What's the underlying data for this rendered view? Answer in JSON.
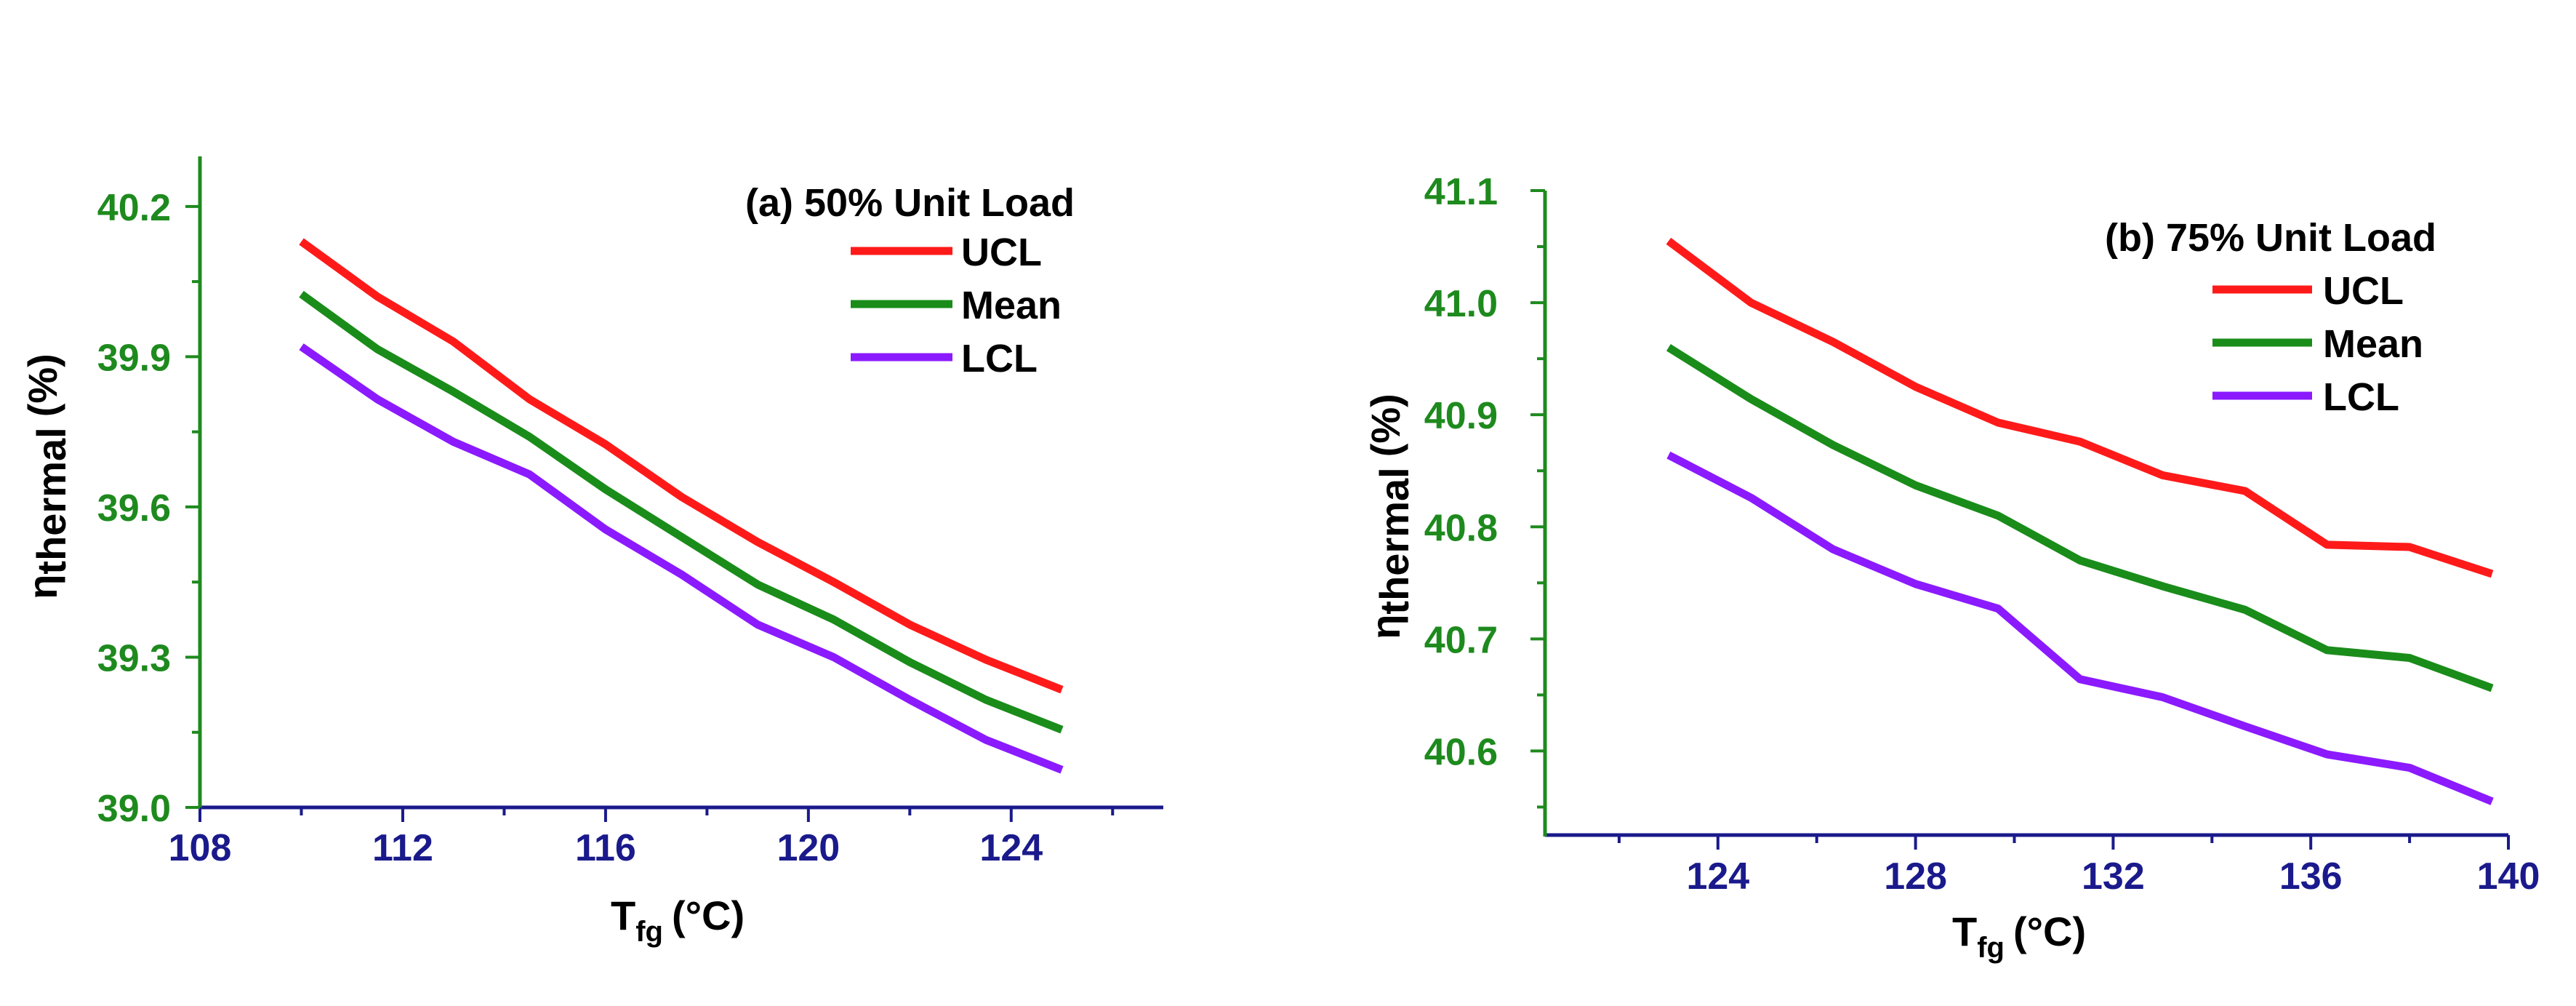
{
  "colors": {
    "axis_x": "#1a1a8c",
    "axis_y": "#1e8a1e",
    "tick_label_x": "#1a1a8c",
    "tick_label_y": "#1e8a1e",
    "text": "#000000"
  },
  "chart_data": [
    {
      "type": "line",
      "title": "(a) 50% Unit Load",
      "xlabel": "T",
      "xlabel_sub": "fg",
      "xlabel_unit": "(°C)",
      "ylabel": "η",
      "ylabel_sub": "thermal",
      "ylabel_unit": "(%)",
      "xlim": [
        108,
        127
      ],
      "ylim": [
        39.0,
        40.3
      ],
      "x_ticks": [
        108,
        112,
        116,
        120,
        124
      ],
      "y_ticks": [
        39.0,
        39.3,
        39.6,
        39.9,
        40.2
      ],
      "x_tick_labels": [
        "108",
        "112",
        "116",
        "120",
        "124"
      ],
      "y_tick_labels": [
        "39.0",
        "39.3",
        "39.6",
        "39.9",
        "40.2"
      ],
      "legend_position": "top-right",
      "series": [
        {
          "name": "UCL",
          "color": "#ff1a1a",
          "x": [
            110,
            111.5,
            113,
            114.5,
            116,
            117.5,
            119,
            120.5,
            122,
            123.5,
            125
          ],
          "y": [
            40.13,
            40.02,
            39.93,
            39.815,
            39.725,
            39.62,
            39.53,
            39.45,
            39.365,
            39.295,
            39.235
          ]
        },
        {
          "name": "Mean",
          "color": "#1a8c1a",
          "x": [
            110,
            111.5,
            113,
            114.5,
            116,
            117.5,
            119,
            120.5,
            122,
            123.5,
            125
          ],
          "y": [
            40.025,
            39.915,
            39.83,
            39.74,
            39.635,
            39.54,
            39.445,
            39.375,
            39.29,
            39.215,
            39.155
          ]
        },
        {
          "name": "LCL",
          "color": "#8b1aff",
          "x": [
            110,
            111.5,
            113,
            114.5,
            116,
            117.5,
            119,
            120.5,
            122,
            123.5,
            125
          ],
          "y": [
            39.92,
            39.815,
            39.73,
            39.665,
            39.555,
            39.465,
            39.365,
            39.3,
            39.215,
            39.135,
            39.075
          ]
        }
      ]
    },
    {
      "type": "line",
      "title": "(b) 75% Unit Load",
      "xlabel": "T",
      "xlabel_sub": "fg",
      "xlabel_unit": "(°C)",
      "ylabel": "η",
      "ylabel_sub": "thermal",
      "ylabel_unit": "(%)",
      "xlim": [
        120.5,
        140
      ],
      "ylim": [
        40.525,
        41.1
      ],
      "x_ticks": [
        124,
        128,
        132,
        136,
        140
      ],
      "y_ticks": [
        40.6,
        40.7,
        40.8,
        40.9,
        41.0,
        41.1
      ],
      "x_tick_labels": [
        "124",
        "128",
        "132",
        "136",
        "140"
      ],
      "y_tick_labels": [
        "40.6",
        "40.7",
        "40.8",
        "40.9",
        "41.0",
        "41.1"
      ],
      "legend_position": "top-right",
      "series": [
        {
          "name": "UCL",
          "color": "#ff1a1a",
          "x": [
            123,
            124.67,
            126.33,
            128,
            129.67,
            131.33,
            133,
            134.67,
            136.33,
            138,
            139.67
          ],
          "y": [
            41.055,
            41.0,
            40.965,
            40.925,
            40.893,
            40.876,
            40.846,
            40.832,
            40.784,
            40.782,
            40.758
          ]
        },
        {
          "name": "Mean",
          "color": "#1a8c1a",
          "x": [
            123,
            124.67,
            126.33,
            128,
            129.67,
            131.33,
            133,
            134.67,
            136.33,
            138,
            139.67
          ],
          "y": [
            40.96,
            40.914,
            40.873,
            40.837,
            40.81,
            40.77,
            40.747,
            40.726,
            40.69,
            40.683,
            40.656
          ]
        },
        {
          "name": "LCL",
          "color": "#8b1aff",
          "x": [
            123,
            124.67,
            126.33,
            128,
            129.67,
            131.33,
            133,
            134.67,
            136.33,
            138,
            139.67
          ],
          "y": [
            40.864,
            40.826,
            40.78,
            40.749,
            40.727,
            40.664,
            40.648,
            40.622,
            40.597,
            40.585,
            40.555
          ]
        }
      ]
    }
  ]
}
